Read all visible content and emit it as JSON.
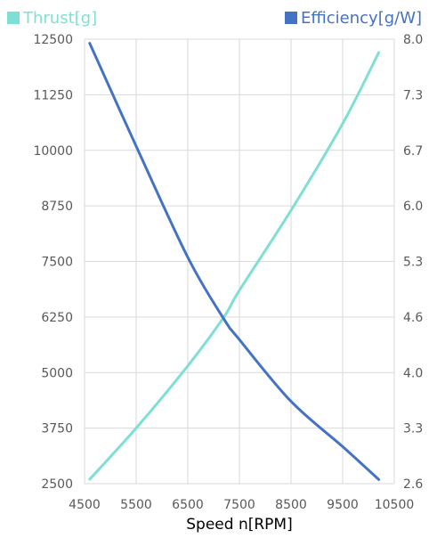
{
  "chart_data": {
    "type": "line",
    "xlabel": "Speed n[RPM]",
    "xlim": [
      4500,
      10500
    ],
    "x_ticks": [
      "4500",
      "5500",
      "6500",
      "7500",
      "8500",
      "9500",
      "10500"
    ],
    "left_axis": {
      "ylim": [
        2500,
        12500
      ],
      "ticks": [
        "12500",
        "11250",
        "10000",
        "8750",
        "7500",
        "6250",
        "5000",
        "3750",
        "2500"
      ]
    },
    "right_axis": {
      "ylim": [
        2.6,
        8.0
      ],
      "ticks": [
        "8.0",
        "7.3",
        "6.7",
        "6.0",
        "5.3",
        "4.6",
        "4.0",
        "3.3",
        "2.6"
      ]
    },
    "grid": true,
    "legend_position": "top",
    "series": [
      {
        "name": "Thrust[g]",
        "axis": "left",
        "color": "#7fdfd4",
        "x": [
          4600,
          5500,
          6500,
          7200,
          7500,
          8500,
          9500,
          10200
        ],
        "values": [
          2600,
          3750,
          5150,
          6250,
          6850,
          8650,
          10600,
          12200
        ]
      },
      {
        "name": "Efficiency[g/W]",
        "axis": "right",
        "color": "#4472c4",
        "x": [
          4600,
          5500,
          6500,
          7200,
          7500,
          8500,
          9500,
          10200
        ],
        "values": [
          7.95,
          6.7,
          5.35,
          4.6,
          4.35,
          3.6,
          3.05,
          2.65
        ]
      }
    ]
  }
}
